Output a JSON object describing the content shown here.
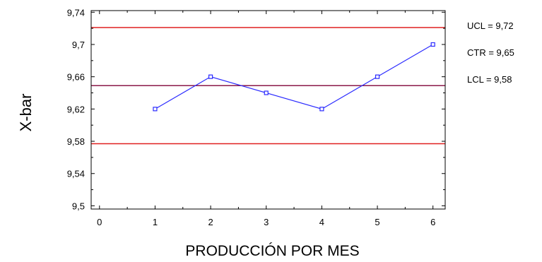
{
  "chart_data": {
    "type": "line",
    "title": "",
    "xlabel": "PRODUCCIÓN POR MES",
    "ylabel": "X-bar",
    "xlim": [
      -0.15,
      6.22
    ],
    "ylim": [
      9.496,
      9.742
    ],
    "x_ticks": [
      0,
      1,
      2,
      3,
      4,
      5,
      6
    ],
    "x_tick_labels": [
      "0",
      "1",
      "2",
      "3",
      "4",
      "5",
      "6"
    ],
    "y_ticks": [
      9.5,
      9.54,
      9.58,
      9.62,
      9.66,
      9.7,
      9.74
    ],
    "y_tick_labels": [
      "9,5",
      "9,54",
      "9,58",
      "9,62",
      "9,66",
      "9,7",
      "9,74"
    ],
    "grid": false,
    "series": [
      {
        "x": [
          1,
          2,
          3,
          4,
          5,
          6
        ],
        "y": [
          9.62,
          9.66,
          9.64,
          9.62,
          9.66,
          9.7
        ],
        "color": "#2b2bff"
      }
    ],
    "control_lines": [
      {
        "value": 9.721,
        "label": "UCL = 9,72",
        "color": "#e02020"
      },
      {
        "value": 9.649,
        "label": "CTR = 9,65",
        "color": "#8b1a4a"
      },
      {
        "value": 9.577,
        "label": "LCL = 9,58",
        "color": "#e02020"
      }
    ]
  }
}
